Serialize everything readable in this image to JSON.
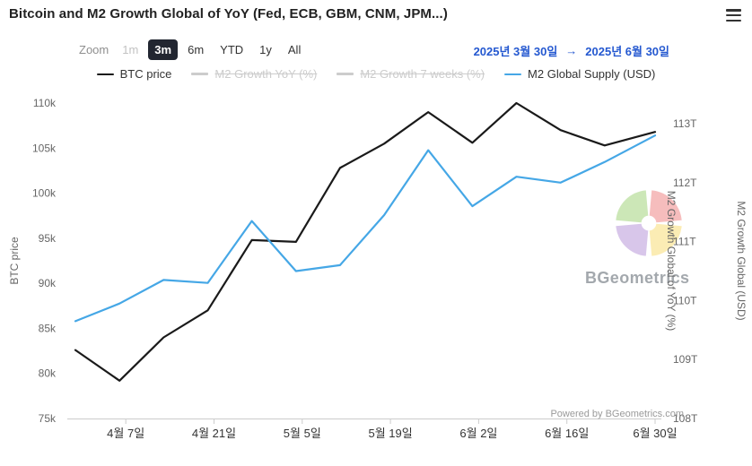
{
  "header": {
    "title": "Bitcoin and M2 Growth Global of YoY (Fed, ECB, GBM, CNM, JPM...)"
  },
  "toolbar": {
    "zoom_label": "Zoom",
    "buttons": [
      {
        "label": "1m",
        "state": "muted"
      },
      {
        "label": "3m",
        "state": "selected"
      },
      {
        "label": "6m",
        "state": "normal"
      },
      {
        "label": "YTD",
        "state": "normal"
      },
      {
        "label": "1y",
        "state": "normal"
      },
      {
        "label": "All",
        "state": "normal"
      }
    ],
    "date_from": "2025년 3월 30일",
    "date_arrow": "→",
    "date_to": "2025년 6월 30일"
  },
  "legend": [
    {
      "label": "BTC price",
      "color": "#1a1a1a",
      "disabled": false
    },
    {
      "label": "M2 Growth YoY (%)",
      "color": "#cccccc",
      "disabled": true
    },
    {
      "label": "M2 Growth 7 weeks (%)",
      "color": "#cccccc",
      "disabled": true
    },
    {
      "label": "M2 Global Supply (USD)",
      "color": "#45a7e6",
      "disabled": false
    }
  ],
  "watermark_text": "BGeometrics",
  "powered_by": "Powered by BGeometrics.com",
  "colors": {
    "accent_blue": "#2458d0",
    "axis_label": "#666666",
    "x_label": "#333333",
    "axis_line": "#cccccc"
  },
  "chart_data": {
    "type": "line",
    "title": "Bitcoin and M2 Growth Global of YoY (Fed, ECB, GBM, CNM, JPM...)",
    "grid": false,
    "legend_position": "top",
    "x_range_days": 92,
    "x_days": [
      0,
      7,
      14,
      21,
      28,
      35,
      42,
      49,
      56,
      63,
      70,
      77,
      84,
      92
    ],
    "x_ticks": [
      {
        "day": 8,
        "label": "4월 7일"
      },
      {
        "day": 22,
        "label": "4월 21일"
      },
      {
        "day": 36,
        "label": "5월 5일"
      },
      {
        "day": 50,
        "label": "5월 19일"
      },
      {
        "day": 64,
        "label": "6월 2일"
      },
      {
        "day": 78,
        "label": "6월 16일"
      },
      {
        "day": 92,
        "label": "6월 30일"
      }
    ],
    "left_axis": {
      "title": "BTC price",
      "min": 75,
      "max": 110,
      "ticks": [
        {
          "value": 75,
          "label": "75k"
        },
        {
          "value": 80,
          "label": "80k"
        },
        {
          "value": 85,
          "label": "85k"
        },
        {
          "value": 90,
          "label": "90k"
        },
        {
          "value": 95,
          "label": "95k"
        },
        {
          "value": 100,
          "label": "100k"
        },
        {
          "value": 105,
          "label": "105k"
        },
        {
          "value": 110,
          "label": "110k"
        }
      ]
    },
    "right_axis": {
      "title": "M2 Growth Global (USD)",
      "min": 108,
      "max": 113,
      "ticks": [
        {
          "value": 108,
          "label": "108T"
        },
        {
          "value": 109,
          "label": "109T"
        },
        {
          "value": 110,
          "label": "110T"
        },
        {
          "value": 111,
          "label": "111T"
        },
        {
          "value": 112,
          "label": "112T"
        },
        {
          "value": 113,
          "label": "113T"
        }
      ]
    },
    "right_inner_axis_title": "M2 Growth Global of YoY (%)",
    "hidden_series": [
      "M2 Growth YoY (%)",
      "M2 Growth 7 weeks (%)"
    ],
    "series": [
      {
        "name": "BTC price",
        "axis": "left",
        "color": "#1a1a1a",
        "unit": "thousand USD",
        "values": [
          82.6,
          79.2,
          84.0,
          87.0,
          94.8,
          94.6,
          102.8,
          105.5,
          109.0,
          105.6,
          110.0,
          107.0,
          105.3,
          106.8
        ]
      },
      {
        "name": "M2 Global Supply (USD)",
        "axis": "right",
        "color": "#45a7e6",
        "unit": "trillion USD",
        "values": [
          109.65,
          109.95,
          110.35,
          110.3,
          111.35,
          110.5,
          110.6,
          111.45,
          112.55,
          111.6,
          112.1,
          112.0,
          112.35,
          112.8
        ]
      }
    ]
  }
}
